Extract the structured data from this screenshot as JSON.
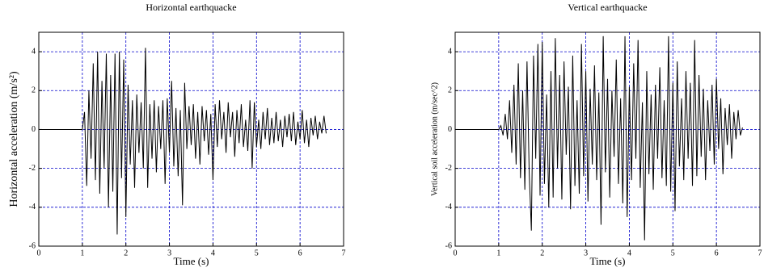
{
  "chart_data": [
    {
      "type": "line",
      "title": "Horizontal earthquacke",
      "x_label": "Time (s)",
      "y_label": "Horizontal acceleration (m/s²)",
      "xlim": [
        0,
        7
      ],
      "ylim": [
        -6,
        5
      ],
      "xticks": [
        0,
        1,
        2,
        3,
        4,
        5,
        6,
        7
      ],
      "yticks": [
        -6,
        -4,
        -2,
        0,
        2,
        4
      ],
      "grid": true,
      "series": [
        {
          "color": "#000000",
          "x": [
            0,
            1,
            1.05,
            1.1,
            1.15,
            1.2,
            1.25,
            1.3,
            1.35,
            1.4,
            1.45,
            1.5,
            1.55,
            1.6,
            1.65,
            1.7,
            1.75,
            1.8,
            1.85,
            1.9,
            1.95,
            2,
            2.05,
            2.1,
            2.15,
            2.2,
            2.25,
            2.3,
            2.35,
            2.4,
            2.45,
            2.5,
            2.55,
            2.6,
            2.65,
            2.7,
            2.75,
            2.8,
            2.85,
            2.9,
            2.95,
            3,
            3.05,
            3.1,
            3.15,
            3.2,
            3.25,
            3.3,
            3.35,
            3.4,
            3.45,
            3.5,
            3.55,
            3.6,
            3.65,
            3.7,
            3.75,
            3.8,
            3.85,
            3.9,
            3.95,
            4,
            4.05,
            4.1,
            4.15,
            4.2,
            4.25,
            4.3,
            4.35,
            4.4,
            4.45,
            4.5,
            4.55,
            4.6,
            4.65,
            4.7,
            4.75,
            4.8,
            4.85,
            4.9,
            4.95,
            5,
            5.05,
            5.1,
            5.15,
            5.2,
            5.25,
            5.3,
            5.35,
            5.4,
            5.45,
            5.5,
            5.55,
            5.6,
            5.65,
            5.7,
            5.75,
            5.8,
            5.85,
            5.9,
            5.95,
            6,
            6.05,
            6.1,
            6.15,
            6.2,
            6.25,
            6.3,
            6.35,
            6.4,
            6.45,
            6.5,
            6.55,
            6.6
          ],
          "values": [
            0,
            0,
            0.9,
            -2.9,
            2.0,
            -1.5,
            3.4,
            -2.6,
            4.0,
            -3.3,
            2.5,
            -2.0,
            3.9,
            -4.0,
            2.8,
            -3.2,
            3.9,
            -5.4,
            4.0,
            -2.5,
            3.6,
            -4.5,
            2.3,
            -1.8,
            1.5,
            -3.0,
            1.8,
            -1.2,
            1.4,
            -2.0,
            4.2,
            -3.0,
            1.3,
            -1.5,
            1.5,
            -2.2,
            1.2,
            -1.0,
            1.5,
            -2.8,
            1.6,
            -1.2,
            2.5,
            -1.9,
            1.1,
            -2.4,
            1.0,
            -3.9,
            2.4,
            -1.0,
            1.2,
            -0.8,
            1.3,
            -1.5,
            0.9,
            -1.8,
            1.2,
            -0.6,
            1.0,
            -1.3,
            0.8,
            -2.6,
            1.3,
            -0.9,
            1.5,
            -0.5,
            0.9,
            -1.2,
            1.4,
            -0.4,
            0.9,
            -1.4,
            1.0,
            -0.7,
            1.3,
            -0.9,
            0.5,
            -1.1,
            1.5,
            -2.0,
            1.4,
            -0.9,
            0.5,
            -1.0,
            0.9,
            -0.5,
            1.1,
            -0.8,
            0.6,
            -0.7,
            0.9,
            -0.6,
            0.5,
            -0.9,
            0.7,
            -0.4,
            0.8,
            -0.6,
            0.9,
            -0.8,
            0.4,
            -0.5,
            1.0,
            -0.7,
            0.5,
            -0.9,
            0.6,
            -0.3,
            0.7,
            -0.5,
            0.4,
            -0.2,
            0.7,
            -0.2
          ]
        }
      ]
    },
    {
      "type": "line",
      "title": "Vertical earthquacke",
      "x_label": "Time (s)",
      "y_label": "Vertical soil acceleration (m/sec^2)",
      "xlim": [
        0,
        7
      ],
      "ylim": [
        -6,
        5
      ],
      "xticks": [
        0,
        1,
        2,
        3,
        4,
        5,
        6,
        7
      ],
      "yticks": [
        -6,
        -4,
        -2,
        0,
        2,
        4
      ],
      "grid": true,
      "series": [
        {
          "color": "#000000",
          "x": [
            0,
            1,
            1.05,
            1.1,
            1.15,
            1.2,
            1.25,
            1.3,
            1.35,
            1.4,
            1.45,
            1.5,
            1.55,
            1.6,
            1.65,
            1.7,
            1.75,
            1.8,
            1.85,
            1.9,
            1.95,
            2,
            2.05,
            2.1,
            2.15,
            2.2,
            2.25,
            2.3,
            2.35,
            2.4,
            2.45,
            2.5,
            2.55,
            2.6,
            2.65,
            2.7,
            2.75,
            2.8,
            2.85,
            2.9,
            2.95,
            3,
            3.05,
            3.1,
            3.15,
            3.2,
            3.25,
            3.3,
            3.35,
            3.4,
            3.45,
            3.5,
            3.55,
            3.6,
            3.65,
            3.7,
            3.75,
            3.8,
            3.85,
            3.9,
            3.95,
            4,
            4.05,
            4.1,
            4.15,
            4.2,
            4.25,
            4.3,
            4.35,
            4.4,
            4.45,
            4.5,
            4.55,
            4.6,
            4.65,
            4.7,
            4.75,
            4.8,
            4.85,
            4.9,
            4.95,
            5,
            5.05,
            5.1,
            5.15,
            5.2,
            5.25,
            5.3,
            5.35,
            5.4,
            5.45,
            5.5,
            5.55,
            5.6,
            5.65,
            5.7,
            5.75,
            5.8,
            5.85,
            5.9,
            5.95,
            6,
            6.05,
            6.1,
            6.15,
            6.2,
            6.25,
            6.3,
            6.35,
            6.4,
            6.45,
            6.5,
            6.55,
            6.6
          ],
          "values": [
            0,
            0,
            0.2,
            -0.3,
            0.8,
            -0.5,
            1.5,
            -1.2,
            2.3,
            -1.8,
            3.4,
            -2.5,
            2.0,
            -3.1,
            3.5,
            -2.2,
            -5.2,
            3.8,
            -1.5,
            4.4,
            -3.4,
            4.5,
            -2.8,
            1.8,
            -4.0,
            3.0,
            -3.5,
            4.7,
            -2.0,
            2.8,
            -3.6,
            3.5,
            -1.3,
            2.2,
            -4.1,
            3.8,
            -2.9,
            1.5,
            -3.3,
            4.4,
            -2.4,
            3.0,
            -3.7,
            2.1,
            -1.8,
            3.3,
            -2.6,
            1.9,
            -4.9,
            4.8,
            -2.2,
            2.6,
            -3.5,
            2.0,
            -1.4,
            3.6,
            -2.8,
            1.6,
            -3.8,
            4.8,
            -4.5,
            2.2,
            -2.6,
            3.4,
            -1.5,
            4.6,
            -3.0,
            1.4,
            -5.7,
            3.0,
            -2.3,
            1.8,
            -3.1,
            2.3,
            -1.5,
            3.2,
            -2.5,
            1.5,
            -2.9,
            4.8,
            -3.2,
            2.4,
            -4.2,
            3.5,
            -1.9,
            1.6,
            -2.6,
            3.0,
            -1.5,
            2.4,
            -2.9,
            4.6,
            -2.4,
            2.8,
            -1.4,
            2.1,
            -2.6,
            1.5,
            -1.1,
            2.3,
            -1.8,
            2.6,
            -1.0,
            1.6,
            -2.3,
            1.1,
            -0.8,
            1.3,
            -1.5,
            0.9,
            -0.5,
            1.0,
            -0.3,
            0.1
          ]
        }
      ]
    }
  ]
}
